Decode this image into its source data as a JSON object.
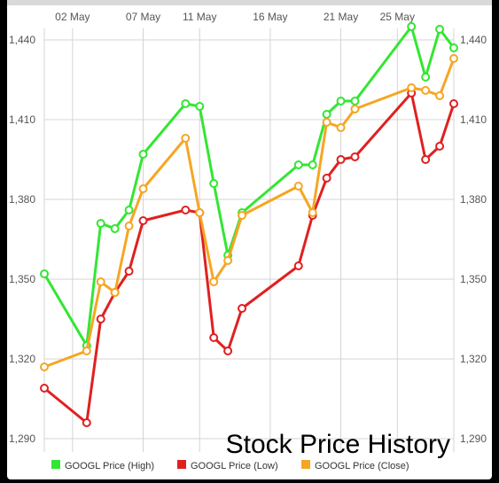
{
  "chart_data": {
    "type": "line",
    "title": "Stock Price History",
    "x_tick_labels": [
      "02 May",
      "07 May",
      "11 May",
      "16 May",
      "21 May",
      "25 May"
    ],
    "y_ticks": [
      1290,
      1320,
      1350,
      1380,
      1410,
      1440
    ],
    "y_tick_labels": [
      "1,290",
      "1,320",
      "1,350",
      "1,380",
      "1,410",
      "1,440"
    ],
    "ylim": [
      1285,
      1453
    ],
    "grid": true,
    "legend_position": "bottom",
    "series": [
      {
        "name": "GOOGL Price (High)",
        "color": "#33e633",
        "points": [
          [
            "2019-04-30",
            1352
          ],
          [
            "2019-05-03",
            1325
          ],
          [
            "2019-05-04",
            1371
          ],
          [
            "2019-05-05",
            1369
          ],
          [
            "2019-05-06",
            1376
          ],
          [
            "2019-05-07",
            1397
          ],
          [
            "2019-05-10",
            1416
          ],
          [
            "2019-05-11",
            1415
          ],
          [
            "2019-05-12",
            1386
          ],
          [
            "2019-05-13",
            1359
          ],
          [
            "2019-05-14",
            1375
          ],
          [
            "2019-05-18",
            1393
          ],
          [
            "2019-05-19",
            1393
          ],
          [
            "2019-05-20",
            1412
          ],
          [
            "2019-05-21",
            1417
          ],
          [
            "2019-05-22",
            1417
          ],
          [
            "2019-05-26",
            1445
          ],
          [
            "2019-05-27",
            1426
          ],
          [
            "2019-05-28",
            1444
          ],
          [
            "2019-05-29",
            1437
          ]
        ]
      },
      {
        "name": "GOOGL Price (Low)",
        "color": "#e02020",
        "points": [
          [
            "2019-04-30",
            1309
          ],
          [
            "2019-05-03",
            1296
          ],
          [
            "2019-05-04",
            1335
          ],
          [
            "2019-05-05",
            1345
          ],
          [
            "2019-05-06",
            1353
          ],
          [
            "2019-05-07",
            1372
          ],
          [
            "2019-05-10",
            1376
          ],
          [
            "2019-05-11",
            1375
          ],
          [
            "2019-05-12",
            1328
          ],
          [
            "2019-05-13",
            1323
          ],
          [
            "2019-05-14",
            1339
          ],
          [
            "2019-05-18",
            1355
          ],
          [
            "2019-05-19",
            1374
          ],
          [
            "2019-05-20",
            1388
          ],
          [
            "2019-05-21",
            1395
          ],
          [
            "2019-05-22",
            1396
          ],
          [
            "2019-05-26",
            1420
          ],
          [
            "2019-05-27",
            1395
          ],
          [
            "2019-05-28",
            1400
          ],
          [
            "2019-05-29",
            1416
          ]
        ]
      },
      {
        "name": "GOOGL Price (Close)",
        "color": "#f5a623",
        "points": [
          [
            "2019-04-30",
            1317
          ],
          [
            "2019-05-03",
            1323
          ],
          [
            "2019-05-04",
            1349
          ],
          [
            "2019-05-05",
            1345
          ],
          [
            "2019-05-06",
            1370
          ],
          [
            "2019-05-07",
            1384
          ],
          [
            "2019-05-10",
            1403
          ],
          [
            "2019-05-11",
            1375
          ],
          [
            "2019-05-12",
            1349
          ],
          [
            "2019-05-13",
            1357
          ],
          [
            "2019-05-14",
            1374
          ],
          [
            "2019-05-18",
            1385
          ],
          [
            "2019-05-19",
            1375
          ],
          [
            "2019-05-20",
            1409
          ],
          [
            "2019-05-21",
            1407
          ],
          [
            "2019-05-22",
            1414
          ],
          [
            "2019-05-26",
            1422
          ],
          [
            "2019-05-27",
            1421
          ],
          [
            "2019-05-28",
            1419
          ],
          [
            "2019-05-29",
            1433
          ]
        ]
      }
    ]
  }
}
